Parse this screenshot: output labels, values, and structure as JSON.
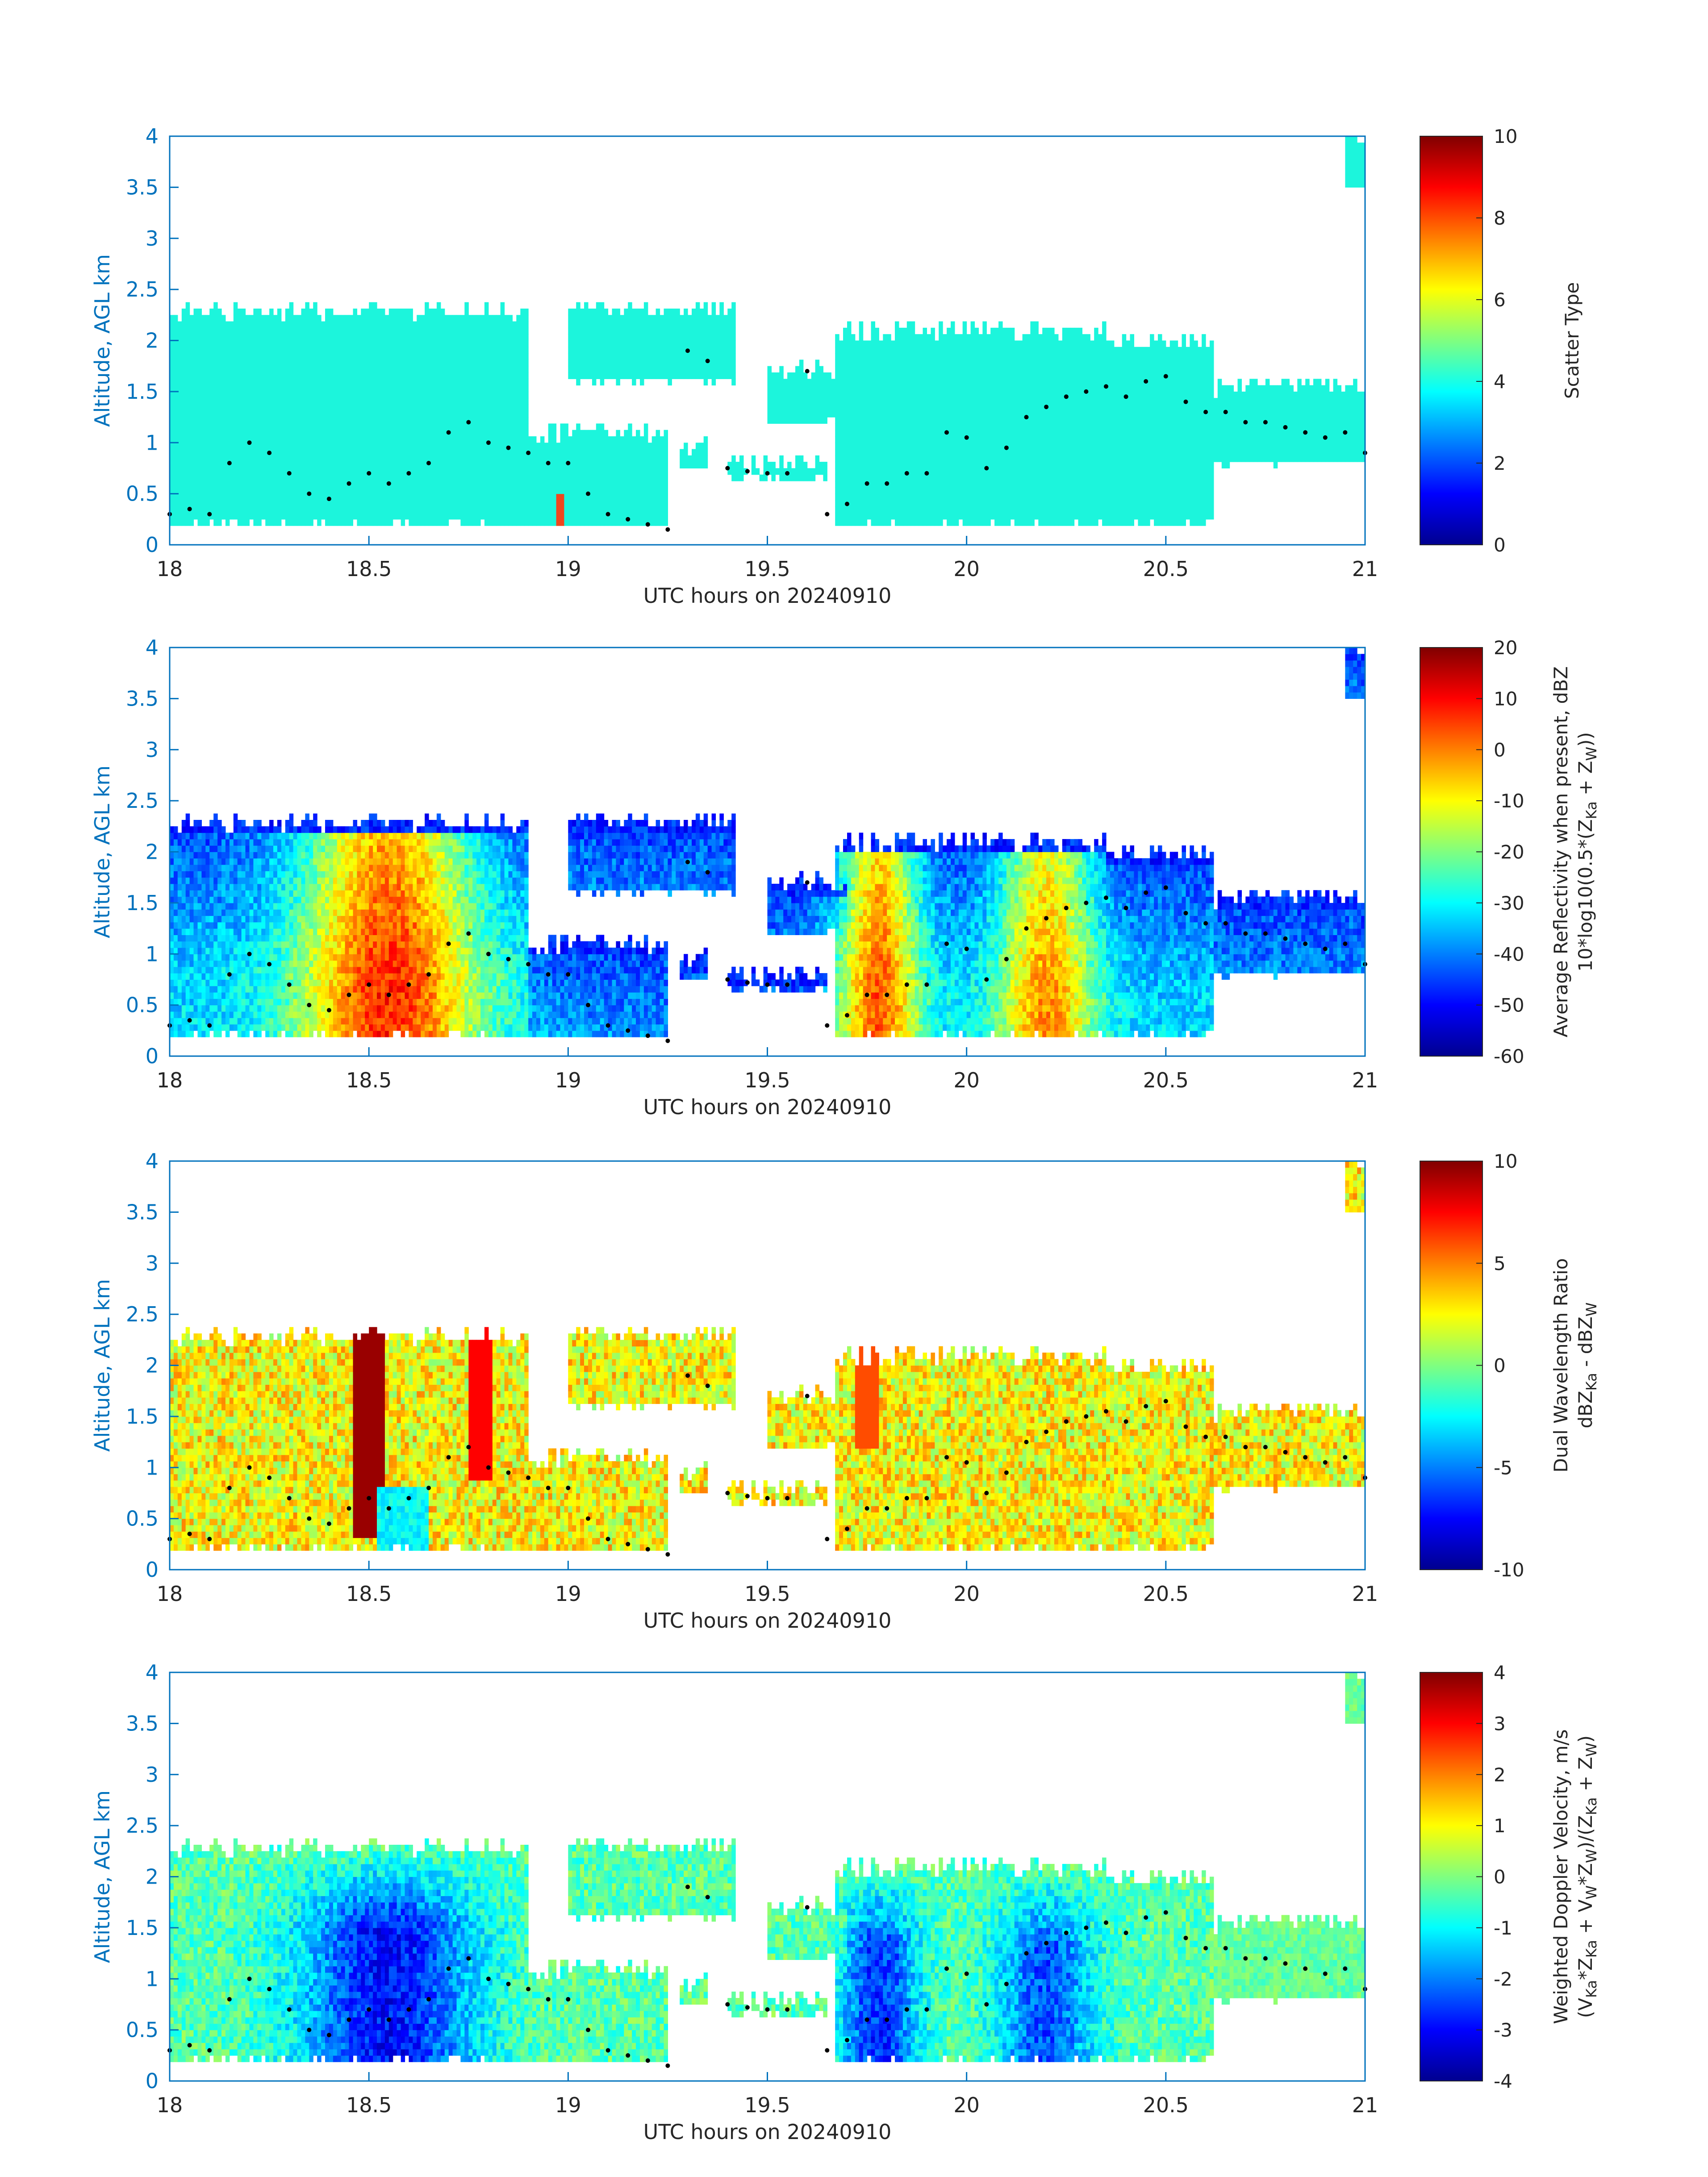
{
  "colors": {
    "axis": "#0072bd",
    "scatter_fill": "#1cf5dc",
    "scatter_red": "#f0461e",
    "dots": "#000000",
    "colormap": "jet"
  },
  "chart_data": [
    {
      "type": "heatmap",
      "xlabel": "UTC hours on 20240910",
      "ylabel": "Altitude, AGL km",
      "xlim": [
        18,
        21
      ],
      "ylim": [
        0,
        4
      ],
      "xticks": [
        "18",
        "18.5",
        "19",
        "19.5",
        "20",
        "20.5",
        "21"
      ],
      "yticks": [
        "0",
        "0.5",
        "1",
        "1.5",
        "2",
        "2.5",
        "3",
        "3.5",
        "4"
      ],
      "colorbar": {
        "label_lines": [
          "Scatter Type"
        ],
        "min": 0,
        "max": 10,
        "ticks": [
          "0",
          "2",
          "4",
          "6",
          "8",
          "10"
        ]
      },
      "field": "scatter_type",
      "values_note": "most echo scatter type 4; isolated near-surface columns of type 9"
    },
    {
      "type": "heatmap",
      "xlabel": "UTC hours on 20240910",
      "ylabel": "Altitude, AGL km",
      "xlim": [
        18,
        21
      ],
      "ylim": [
        0,
        4
      ],
      "xticks": [
        "18",
        "18.5",
        "19",
        "19.5",
        "20",
        "20.5",
        "21"
      ],
      "yticks": [
        "0",
        "0.5",
        "1",
        "1.5",
        "2",
        "2.5",
        "3",
        "3.5",
        "4"
      ],
      "colorbar": {
        "label_lines": [
          "Average Reflectivity when present, dBZ",
          "10*log10(0.5*(Z",
          "Ka",
          " + Z",
          "W",
          "))"
        ],
        "min": -60,
        "max": 20,
        "ticks": [
          "-60",
          "-50",
          "-40",
          "-30",
          "-20",
          "-10",
          "0",
          "10",
          "20"
        ]
      },
      "field": "reflectivity"
    },
    {
      "type": "heatmap",
      "xlabel": "UTC hours on 20240910",
      "ylabel": "Altitude, AGL km",
      "xlim": [
        18,
        21
      ],
      "ylim": [
        0,
        4
      ],
      "xticks": [
        "18",
        "18.5",
        "19",
        "19.5",
        "20",
        "20.5",
        "21"
      ],
      "yticks": [
        "0",
        "0.5",
        "1",
        "1.5",
        "2",
        "2.5",
        "3",
        "3.5",
        "4"
      ],
      "colorbar": {
        "label_lines": [
          "Dual Wavelength Ratio",
          "dBZ",
          "Ka",
          " - dBZ",
          "W"
        ],
        "min": -10,
        "max": 10,
        "ticks": [
          "-10",
          "-5",
          "0",
          "5",
          "10"
        ]
      },
      "field": "dwr"
    },
    {
      "type": "heatmap",
      "xlabel": "UTC hours on 20240910",
      "ylabel": "Altitude, AGL km",
      "xlim": [
        18,
        21
      ],
      "ylim": [
        0,
        4
      ],
      "xticks": [
        "18",
        "18.5",
        "19",
        "19.5",
        "20",
        "20.5",
        "21"
      ],
      "yticks": [
        "0",
        "0.5",
        "1",
        "1.5",
        "2",
        "2.5",
        "3",
        "3.5",
        "4"
      ],
      "colorbar": {
        "label_lines": [
          "Weighted Doppler Velocity, m/s",
          "(V",
          "Ka",
          "*Z",
          "Ka",
          " + V",
          "W",
          "*Z",
          "W",
          ")/(Z",
          "Ka",
          " + Z",
          "W",
          ")"
        ],
        "min": -4,
        "max": 4,
        "ticks": [
          "-4",
          "-3",
          "-2",
          "-1",
          "0",
          "1",
          "2",
          "3",
          "4"
        ]
      },
      "field": "velocity"
    }
  ],
  "cloud_segments": [
    {
      "x0": 18.0,
      "x1": 18.9,
      "base": 0.2,
      "top": 2.3
    },
    {
      "x0": 18.9,
      "x1": 19.25,
      "base": 0.15,
      "top": 1.1
    },
    {
      "x0": 19.0,
      "x1": 19.42,
      "base": 1.6,
      "top": 2.3
    },
    {
      "x0": 19.28,
      "x1": 19.35,
      "base": 0.75,
      "top": 0.95
    },
    {
      "x0": 19.4,
      "x1": 19.65,
      "base": 0.65,
      "top": 0.8
    },
    {
      "x0": 19.5,
      "x1": 19.7,
      "base": 1.2,
      "top": 1.7
    },
    {
      "x0": 19.67,
      "x1": 20.35,
      "base": 0.2,
      "top": 2.1
    },
    {
      "x0": 20.35,
      "x1": 20.62,
      "base": 0.2,
      "top": 2.0
    },
    {
      "x0": 20.62,
      "x1": 21.0,
      "base": 0.8,
      "top": 1.55
    },
    {
      "x0": 20.95,
      "x1": 21.0,
      "base": 3.5,
      "top": 4.0
    }
  ],
  "cloud_top_dots": [
    [
      18.0,
      0.3
    ],
    [
      18.05,
      0.35
    ],
    [
      18.1,
      0.3
    ],
    [
      18.15,
      0.8
    ],
    [
      18.2,
      1.0
    ],
    [
      18.25,
      0.9
    ],
    [
      18.3,
      0.7
    ],
    [
      18.35,
      0.5
    ],
    [
      18.4,
      0.45
    ],
    [
      18.45,
      0.6
    ],
    [
      18.5,
      0.7
    ],
    [
      18.55,
      0.6
    ],
    [
      18.6,
      0.7
    ],
    [
      18.65,
      0.8
    ],
    [
      18.7,
      1.1
    ],
    [
      18.75,
      1.2
    ],
    [
      18.8,
      1.0
    ],
    [
      18.85,
      0.95
    ],
    [
      18.9,
      0.9
    ],
    [
      18.95,
      0.8
    ],
    [
      19.0,
      0.8
    ],
    [
      19.05,
      0.5
    ],
    [
      19.1,
      0.3
    ],
    [
      19.15,
      0.25
    ],
    [
      19.2,
      0.2
    ],
    [
      19.25,
      0.15
    ],
    [
      19.3,
      1.9
    ],
    [
      19.35,
      1.8
    ],
    [
      19.4,
      0.75
    ],
    [
      19.45,
      0.72
    ],
    [
      19.5,
      0.7
    ],
    [
      19.55,
      0.7
    ],
    [
      19.6,
      1.7
    ],
    [
      19.65,
      0.3
    ],
    [
      19.7,
      0.4
    ],
    [
      19.75,
      0.6
    ],
    [
      19.8,
      0.6
    ],
    [
      19.85,
      0.7
    ],
    [
      19.9,
      0.7
    ],
    [
      19.95,
      1.1
    ],
    [
      20.0,
      1.05
    ],
    [
      20.05,
      0.75
    ],
    [
      20.1,
      0.95
    ],
    [
      20.15,
      1.25
    ],
    [
      20.2,
      1.35
    ],
    [
      20.25,
      1.45
    ],
    [
      20.3,
      1.5
    ],
    [
      20.35,
      1.55
    ],
    [
      20.4,
      1.45
    ],
    [
      20.45,
      1.6
    ],
    [
      20.5,
      1.65
    ],
    [
      20.55,
      1.4
    ],
    [
      20.6,
      1.3
    ],
    [
      20.65,
      1.3
    ],
    [
      20.7,
      1.2
    ],
    [
      20.75,
      1.2
    ],
    [
      20.8,
      1.15
    ],
    [
      20.85,
      1.1
    ],
    [
      20.9,
      1.05
    ],
    [
      20.95,
      1.1
    ],
    [
      21.0,
      0.9
    ]
  ]
}
